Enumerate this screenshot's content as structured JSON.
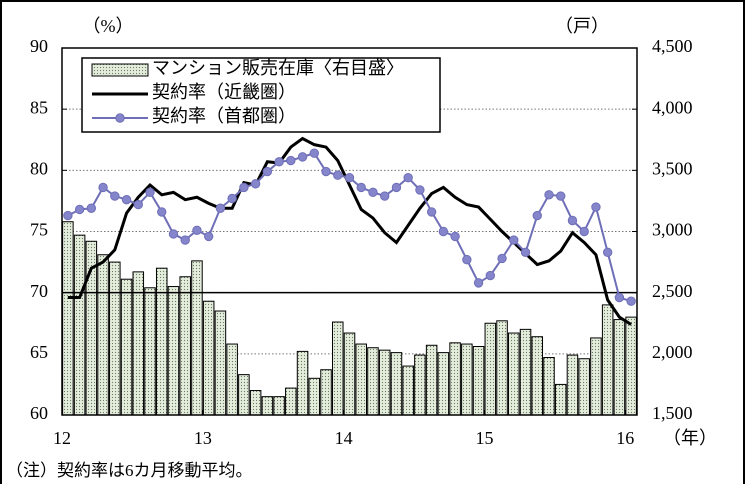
{
  "chart_data": {
    "type": "bar-line",
    "y_unit_label": "（%）",
    "y2_unit_label": "（戸）",
    "x_unit_label": "（年）",
    "note": "（注）契約率は6カ月移動平均。",
    "categories": [
      "12",
      null,
      null,
      null,
      null,
      null,
      null,
      null,
      null,
      null,
      null,
      null,
      "13",
      null,
      null,
      null,
      null,
      null,
      null,
      null,
      null,
      null,
      null,
      null,
      "14",
      null,
      null,
      null,
      null,
      null,
      null,
      null,
      null,
      null,
      null,
      null,
      "15",
      null,
      null,
      null,
      null,
      null,
      null,
      null,
      null,
      null,
      null,
      null,
      "16"
    ],
    "ylim": [
      60,
      90
    ],
    "yticks": [
      60,
      65,
      70,
      75,
      80,
      85,
      90
    ],
    "y2lim": [
      1500,
      4500
    ],
    "y2ticks": [
      {
        "value": 1500,
        "label": "1,500"
      },
      {
        "value": 2000,
        "label": "2,000"
      },
      {
        "value": 2500,
        "label": "2,500"
      },
      {
        "value": 3000,
        "label": "3,000"
      },
      {
        "value": 3500,
        "label": "3,500"
      },
      {
        "value": 4000,
        "label": "4,000"
      },
      {
        "value": 4500,
        "label": "4,500"
      }
    ],
    "grid": true,
    "hline": 70,
    "legend": "upper left",
    "series": [
      {
        "name": "マンション販売在庫〈右目盛〉",
        "kind": "bar",
        "axis": "y2",
        "color": "#dfe8d8",
        "values": [
          3080,
          2970,
          2920,
          2810,
          2750,
          2610,
          2670,
          2540,
          2700,
          2550,
          2630,
          2760,
          2430,
          2350,
          2080,
          1830,
          1700,
          1650,
          1650,
          1720,
          2020,
          1800,
          1870,
          2260,
          2170,
          2080,
          2050,
          2030,
          2010,
          1900,
          1990,
          2070,
          2010,
          2090,
          2080,
          2060,
          2250,
          2270,
          2170,
          2200,
          2140,
          1970,
          1750,
          1990,
          1960,
          2130,
          2400,
          2280,
          2300
        ]
      },
      {
        "name": "契約率（近畿圏）",
        "kind": "line",
        "color": "#000000",
        "values": [
          69.6,
          69.6,
          72.0,
          72.5,
          73.5,
          76.5,
          77.8,
          78.8,
          78.0,
          78.2,
          77.6,
          77.8,
          77.3,
          76.9,
          76.9,
          79.0,
          78.8,
          80.7,
          80.6,
          81.9,
          82.6,
          82.1,
          81.9,
          80.8,
          78.8,
          76.8,
          76.1,
          74.9,
          74.1,
          75.5,
          76.9,
          78.1,
          78.6,
          77.8,
          77.2,
          77.0,
          76.0,
          75.0,
          74.1,
          73.2,
          72.3,
          72.6,
          73.4,
          74.9,
          74.1,
          73.1,
          69.4,
          68.0,
          67.4
        ]
      },
      {
        "name": "契約率（首都圏）",
        "kind": "line-marker",
        "color": "#6f6fb8",
        "values": [
          76.3,
          76.8,
          76.9,
          78.6,
          77.9,
          77.6,
          77.2,
          78.2,
          76.6,
          74.8,
          74.3,
          75.1,
          74.6,
          76.9,
          77.7,
          78.6,
          78.9,
          79.9,
          80.7,
          80.8,
          81.1,
          81.4,
          79.9,
          79.6,
          79.4,
          78.6,
          78.2,
          77.9,
          78.6,
          79.4,
          78.4,
          76.6,
          75.0,
          74.6,
          72.7,
          70.8,
          71.4,
          72.8,
          74.3,
          73.3,
          76.3,
          78.0,
          77.9,
          75.9,
          75.0,
          77.0,
          73.3,
          69.6,
          69.3
        ]
      }
    ]
  }
}
